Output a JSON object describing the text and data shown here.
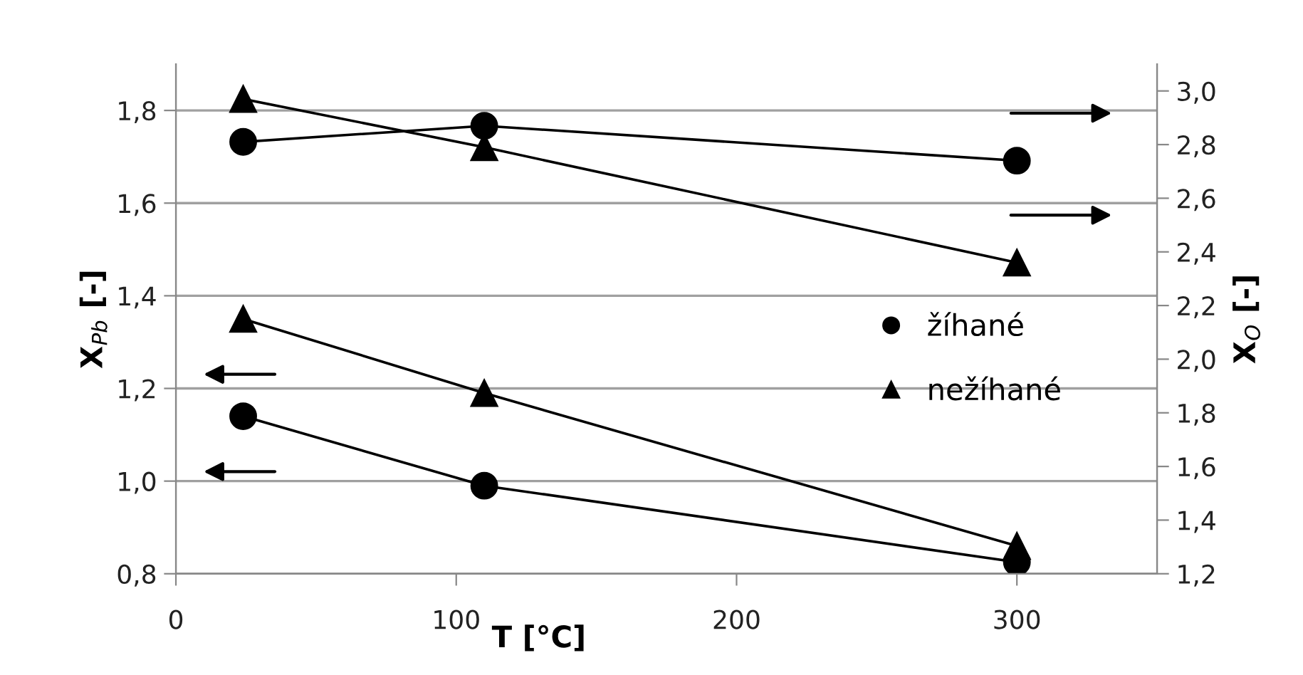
{
  "chart_data": {
    "type": "line",
    "xlabel": "T [°C]",
    "ylabel": "X$_{Pb}$ [-]",
    "y2label": "X$_{O}$ [-]",
    "xlim": [
      0,
      350
    ],
    "xticks": [
      0,
      100,
      200,
      300
    ],
    "ylim": [
      0.8,
      1.9
    ],
    "yticks": [
      {
        "value": 0.8,
        "label": "0,8"
      },
      {
        "value": 1.0,
        "label": "1,0"
      },
      {
        "value": 1.2,
        "label": "1,2"
      },
      {
        "value": 1.4,
        "label": "1,4"
      },
      {
        "value": 1.6,
        "label": "1,6"
      },
      {
        "value": 1.8,
        "label": "1,8"
      }
    ],
    "y2lim": [
      1.2,
      3.1
    ],
    "y2ticks": [
      {
        "value": 1.2,
        "label": "1,2"
      },
      {
        "value": 1.4,
        "label": "1,4"
      },
      {
        "value": 1.6,
        "label": "1,6"
      },
      {
        "value": 1.8,
        "label": "1,8"
      },
      {
        "value": 2.0,
        "label": "2,0"
      },
      {
        "value": 2.2,
        "label": "2,2"
      },
      {
        "value": 2.4,
        "label": "2,4"
      },
      {
        "value": 2.6,
        "label": "2,6"
      },
      {
        "value": 2.8,
        "label": "2,8"
      },
      {
        "value": 3.0,
        "label": "3,0"
      }
    ],
    "grid": "y",
    "legend": "right",
    "line_style": "solid",
    "series": [
      {
        "name": "žíhané",
        "color": "#000000",
        "marker": "circle",
        "x": [
          24,
          110,
          300
        ],
        "values": [
          1.14,
          0.99,
          0.825
        ]
      },
      {
        "name": "nežíhané",
        "color": "#000000",
        "marker": "triangle",
        "x": [
          24,
          110,
          300
        ],
        "values": [
          1.35,
          1.19,
          0.86
        ]
      },
      {
        "color": "#000000",
        "marker": "circle",
        "axis": "y2",
        "x": [
          24,
          110,
          300
        ],
        "values": [
          2.81,
          2.87,
          2.74
        ]
      },
      {
        "color": "#000000",
        "marker": "triangle",
        "axis": "y2",
        "x": [
          24,
          110,
          300
        ],
        "values": [
          2.97,
          2.79,
          2.36
        ]
      }
    ]
  }
}
